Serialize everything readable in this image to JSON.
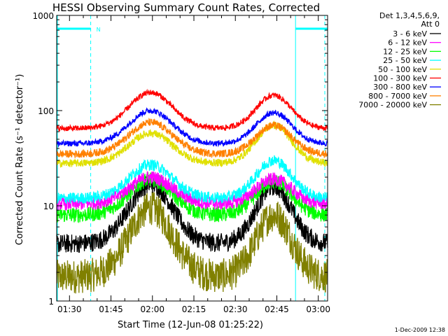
{
  "chart_data": {
    "type": "line",
    "title": "HESSI Observing Summary Count Rates, Corrected",
    "xlabel": "Start Time (12-Jun-08 01:25:22)",
    "ylabel": "Corrected Count Rate (s⁻¹ detector⁻¹)",
    "yscale": "log",
    "ylim": [
      1,
      1000
    ],
    "xlim_minutes": [
      0,
      98
    ],
    "x_tick_labels": [
      "01:30",
      "01:45",
      "02:00",
      "02:15",
      "02:30",
      "02:45",
      "03:00"
    ],
    "x_tick_minutes": [
      4.633,
      19.633,
      34.633,
      49.633,
      64.633,
      79.633,
      94.633
    ],
    "y_tick_labels": [
      "1",
      "10",
      "100",
      "1000"
    ],
    "y_tick_values": [
      1,
      10,
      100,
      1000
    ],
    "legend_header": [
      "Det 1,3,4,5,6,9,",
      "Att 0"
    ],
    "legend_position": "right",
    "timestamp": "1-Dec-2009 12:38",
    "night_marker_label": "N",
    "night_intervals_minutes": [
      [
        0,
        12.3
      ],
      [
        86.4,
        98
      ]
    ],
    "series": [
      {
        "name": "3 - 6 keV",
        "color": "#000000",
        "base": 4.0,
        "peak1": 17.0,
        "peak2": 16.0,
        "noise": 0.1,
        "minutes_range": [
          0,
          98
        ]
      },
      {
        "name": "6 - 12 keV",
        "color": "#ff00ff",
        "base": 10.5,
        "peak1": 20.0,
        "peak2": 19.0,
        "noise": 0.07,
        "minutes_range": [
          0,
          98
        ]
      },
      {
        "name": "12 - 25 keV",
        "color": "#00ff00",
        "base": 8.0,
        "peak1": 19.0,
        "peak2": 18.0,
        "noise": 0.08,
        "minutes_range": [
          0,
          98
        ]
      },
      {
        "name": "25 - 50 keV",
        "color": "#00ffff",
        "base": 12.0,
        "peak1": 27.0,
        "peak2": 30.0,
        "noise": 0.06,
        "minutes_range": [
          0,
          98
        ]
      },
      {
        "name": "50 - 100 keV",
        "color": "#e0e000",
        "base": 28.0,
        "peak1": 58.0,
        "peak2": 70.0,
        "noise": 0.04,
        "minutes_range": [
          0,
          98
        ]
      },
      {
        "name": "100 - 300 keV",
        "color": "#ff0000",
        "base": 65.0,
        "peak1": 155.0,
        "peak2": 145.0,
        "noise": 0.03,
        "minutes_range": [
          0,
          98
        ]
      },
      {
        "name": "300 - 800 keV",
        "color": "#0000ff",
        "base": 45.0,
        "peak1": 100.0,
        "peak2": 95.0,
        "noise": 0.03,
        "minutes_range": [
          0,
          98
        ]
      },
      {
        "name": "800 - 7000 keV",
        "color": "#ff8000",
        "base": 35.0,
        "peak1": 75.0,
        "peak2": 70.0,
        "noise": 0.04,
        "minutes_range": [
          0,
          98
        ]
      },
      {
        "name": "7000 - 20000 keV",
        "color": "#808000",
        "base": 1.8,
        "peak1": 9.5,
        "peak2": 8.0,
        "noise": 0.18,
        "minutes_range": [
          0,
          98
        ]
      }
    ]
  },
  "colors": {
    "night_marker": "#00ffff",
    "axes": "#000000",
    "background": "#ffffff"
  }
}
